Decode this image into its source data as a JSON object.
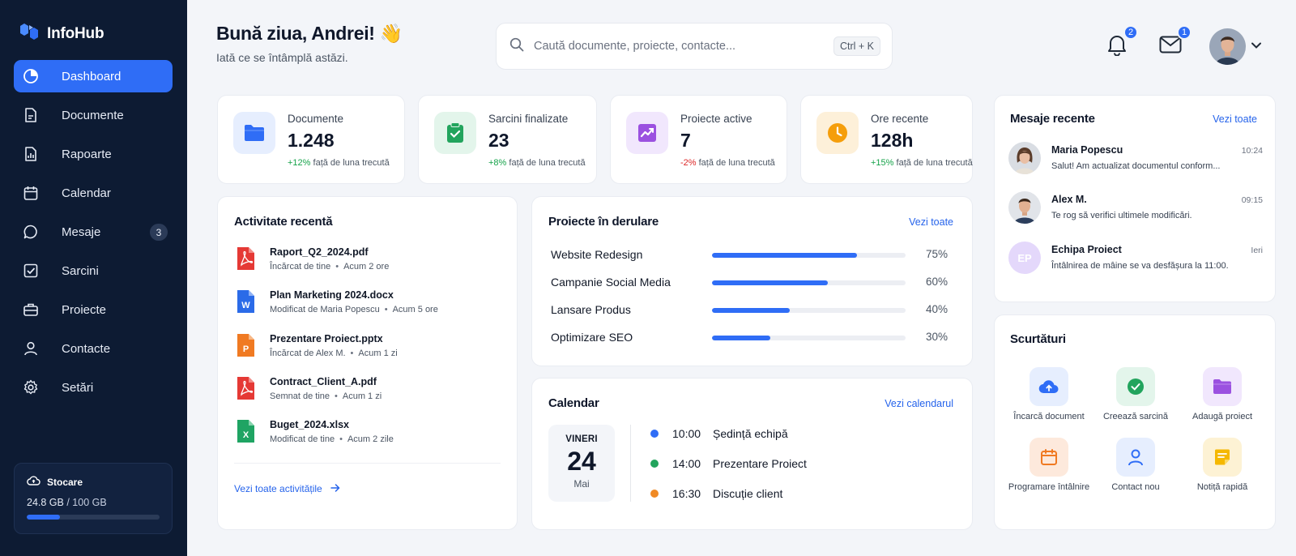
{
  "app": {
    "name": "InfoHub"
  },
  "sidebar": {
    "items": [
      {
        "label": "Dashboard",
        "icon": "dashboard-icon",
        "active": true
      },
      {
        "label": "Documente",
        "icon": "document-icon"
      },
      {
        "label": "Rapoarte",
        "icon": "report-icon"
      },
      {
        "label": "Calendar",
        "icon": "calendar-icon"
      },
      {
        "label": "Mesaje",
        "icon": "message-icon",
        "badge": "3"
      },
      {
        "label": "Sarcini",
        "icon": "task-icon"
      },
      {
        "label": "Proiecte",
        "icon": "briefcase-icon"
      },
      {
        "label": "Contacte",
        "icon": "user-icon"
      },
      {
        "label": "Setări",
        "icon": "gear-icon"
      }
    ],
    "storage": {
      "title": "Stocare",
      "used": "24.8 GB",
      "sep": " / ",
      "total": "100 GB",
      "fraction": 0.248
    }
  },
  "header": {
    "greeting": "Bună ziua, Andrei! 👋",
    "subtitle": "Iată ce se întâmplă astăzi.",
    "search_placeholder": "Caută documente, proiecte, contacte...",
    "shortcut": "Ctrl + K",
    "notifications_count": "2",
    "messages_count": "1"
  },
  "stats": [
    {
      "label": "Documente",
      "value": "1.248",
      "delta": "+12%",
      "delta_text": "față de luna trecută",
      "trend": "up",
      "color": "#2f6df6"
    },
    {
      "label": "Sarcini finalizate",
      "value": "23",
      "delta": "+8%",
      "delta_text": "față de luna trecută",
      "trend": "up",
      "color": "#22a45d"
    },
    {
      "label": "Proiecte active",
      "value": "7",
      "delta": "-2%",
      "delta_text": "față de luna trecută",
      "trend": "down",
      "color": "#9b51e0"
    },
    {
      "label": "Ore recente",
      "value": "128h",
      "delta": "+15%",
      "delta_text": "față de luna trecută",
      "trend": "up",
      "color": "#f59e0b"
    }
  ],
  "activity": {
    "title": "Activitate recentă",
    "items": [
      {
        "name": "Raport_Q2_2024.pdf",
        "action": "Încărcat de tine",
        "time": "Acum 2 ore",
        "type": "pdf"
      },
      {
        "name": "Plan Marketing 2024.docx",
        "action": "Modificat de Maria Popescu",
        "time": "Acum 5 ore",
        "type": "word"
      },
      {
        "name": "Prezentare Proiect.pptx",
        "action": "Încărcat de Alex M.",
        "time": "Acum 1 zi",
        "type": "ppt"
      },
      {
        "name": "Contract_Client_A.pdf",
        "action": "Semnat de tine",
        "time": "Acum 1 zi",
        "type": "pdf"
      },
      {
        "name": "Buget_2024.xlsx",
        "action": "Modificat de tine",
        "time": "Acum 2 zile",
        "type": "excel"
      }
    ],
    "link": "Vezi toate activitățile"
  },
  "projects": {
    "title": "Proiecte în derulare",
    "link": "Vezi toate",
    "items": [
      {
        "name": "Website Redesign",
        "percent": 75,
        "label": "75%"
      },
      {
        "name": "Campanie Social Media",
        "percent": 60,
        "label": "60%"
      },
      {
        "name": "Lansare Produs",
        "percent": 40,
        "label": "40%"
      },
      {
        "name": "Optimizare SEO",
        "percent": 30,
        "label": "30%"
      }
    ]
  },
  "calendar": {
    "title": "Calendar",
    "link": "Vezi calendarul",
    "day_name": "VINERI",
    "day": "24",
    "month": "Mai",
    "events": [
      {
        "time": "10:00",
        "title": "Ședință echipă",
        "color": "#2f6df6"
      },
      {
        "time": "14:00",
        "title": "Prezentare Proiect",
        "color": "#22a45d"
      },
      {
        "time": "16:30",
        "title": "Discuție client",
        "color": "#f08a24"
      }
    ]
  },
  "messages": {
    "title": "Mesaje recente",
    "link": "Vezi toate",
    "items": [
      {
        "name": "Maria Popescu",
        "time": "10:24",
        "text": "Salut! Am actualizat documentul conform..."
      },
      {
        "name": "Alex M.",
        "time": "09:15",
        "text": "Te rog să verifici ultimele modificări."
      },
      {
        "name": "Echipa Proiect",
        "time": "Ieri",
        "text": "Întâlnirea de mâine se va desfășura la 11:00.",
        "initials": "EP"
      }
    ]
  },
  "shortcuts": {
    "title": "Scurtături",
    "items": [
      {
        "label": "Încarcă document",
        "icon": "cloud-upload-icon"
      },
      {
        "label": "Creează sarcină",
        "icon": "check-circle-icon"
      },
      {
        "label": "Adaugă proiect",
        "icon": "folder-plus-icon"
      },
      {
        "label": "Programare întâlnire",
        "icon": "calendar-icon"
      },
      {
        "label": "Contact nou",
        "icon": "user-icon"
      },
      {
        "label": "Notiță rapidă",
        "icon": "note-icon"
      }
    ]
  }
}
